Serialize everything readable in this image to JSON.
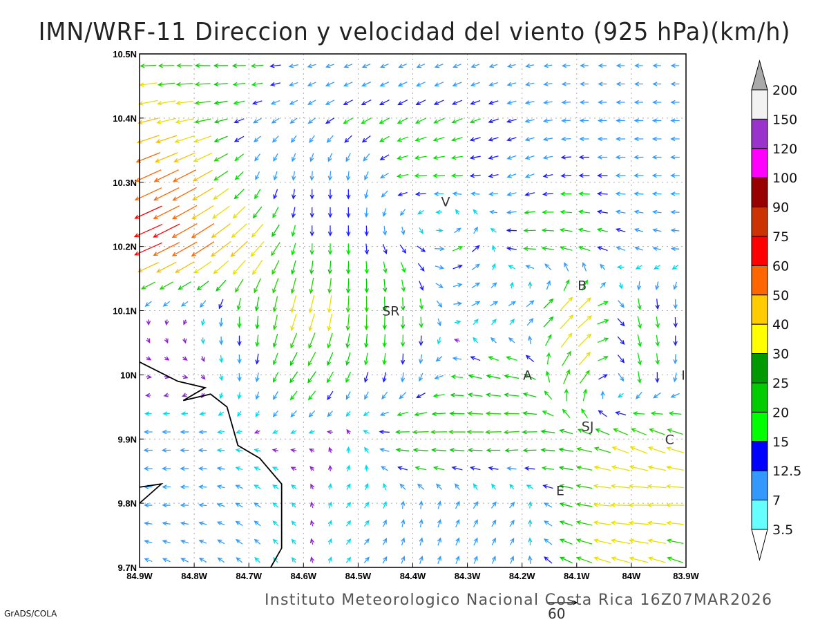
{
  "title": "IMN/WRF-11 Direccion y velocidad del viento (925 hPa)(km/h)",
  "footer": "Instituto Meteorologico Nacional Costa Rica 16Z07MAR2026",
  "credit": "GrADS/COLA",
  "reference_vector": {
    "value": "60",
    "speed": 60
  },
  "chart_data": {
    "type": "vector-field",
    "units": "km/h",
    "level": "925 hPa",
    "lon_range": [
      -84.9,
      -83.9
    ],
    "lat_range": [
      9.7,
      10.5
    ],
    "x_ticks": [
      "84.9W",
      "84.8W",
      "84.7W",
      "84.6W",
      "84.5W",
      "84.4W",
      "84.3W",
      "84.2W",
      "84.1W",
      "84W",
      "83.9W"
    ],
    "y_ticks": [
      "10.5N",
      "10.4N",
      "10.3N",
      "10.2N",
      "10.1N",
      "10N",
      "9.9N",
      "9.8N",
      "9.7N"
    ],
    "grid": true,
    "coarse_grid_note": "rows lat 10.5 to 9.7 step 0.1; cols lon 84.9W to 83.9W step 0.1; [u,v] km/h",
    "uv": [
      [
        [
          -25,
          0
        ],
        [
          -25,
          2
        ],
        [
          -22,
          0
        ],
        [
          -10,
          -2
        ],
        [
          -8,
          -3
        ],
        [
          -8,
          -3
        ],
        [
          -8,
          -3
        ],
        [
          -8,
          -2
        ],
        [
          -8,
          0
        ],
        [
          -8,
          0
        ],
        [
          -8,
          0
        ]
      ],
      [
        [
          -40,
          -10
        ],
        [
          -30,
          -5
        ],
        [
          -10,
          -5
        ],
        [
          -8,
          -6
        ],
        [
          -15,
          -8
        ],
        [
          -15,
          -8
        ],
        [
          -15,
          -6
        ],
        [
          -12,
          -3
        ],
        [
          -10,
          0
        ],
        [
          -10,
          0
        ],
        [
          -10,
          0
        ]
      ],
      [
        [
          -55,
          -25
        ],
        [
          -45,
          -25
        ],
        [
          -5,
          -10
        ],
        [
          0,
          -12
        ],
        [
          0,
          -12
        ],
        [
          -20,
          0
        ],
        [
          -15,
          0
        ],
        [
          -10,
          -5
        ],
        [
          -15,
          0
        ],
        [
          -12,
          0
        ],
        [
          -10,
          0
        ]
      ],
      [
        [
          -60,
          -25
        ],
        [
          -50,
          -30
        ],
        [
          -30,
          -30
        ],
        [
          0,
          -15
        ],
        [
          0,
          -15
        ],
        [
          10,
          -10
        ],
        [
          15,
          10
        ],
        [
          -20,
          0
        ],
        [
          -20,
          5
        ],
        [
          -10,
          5
        ],
        [
          -8,
          0
        ]
      ],
      [
        [
          0,
          -3
        ],
        [
          -2,
          -2
        ],
        [
          0,
          -20
        ],
        [
          -10,
          -35
        ],
        [
          0,
          -30
        ],
        [
          0,
          -20
        ],
        [
          10,
          5
        ],
        [
          10,
          5
        ],
        [
          30,
          30
        ],
        [
          5,
          -20
        ],
        [
          0,
          -12
        ]
      ],
      [
        [
          2,
          0
        ],
        [
          3,
          -1
        ],
        [
          0,
          -10
        ],
        [
          -15,
          -20
        ],
        [
          -5,
          -15
        ],
        [
          0,
          -12
        ],
        [
          -20,
          5
        ],
        [
          -25,
          5
        ],
        [
          20,
          30
        ],
        [
          5,
          -20
        ],
        [
          -3,
          -10
        ]
      ],
      [
        [
          -10,
          0
        ],
        [
          -10,
          0
        ],
        [
          -3,
          0
        ],
        [
          -3,
          0
        ],
        [
          0,
          5
        ],
        [
          -30,
          0
        ],
        [
          -30,
          0
        ],
        [
          -25,
          -3
        ],
        [
          -25,
          5
        ],
        [
          -30,
          15
        ],
        [
          -30,
          10
        ]
      ],
      [
        [
          -8,
          0
        ],
        [
          -8,
          0
        ],
        [
          -8,
          5
        ],
        [
          -2,
          3
        ],
        [
          5,
          5
        ],
        [
          0,
          8
        ],
        [
          5,
          8
        ],
        [
          5,
          5
        ],
        [
          -25,
          5
        ],
        [
          -40,
          0
        ],
        [
          -30,
          0
        ]
      ],
      [
        [
          -8,
          3
        ],
        [
          -8,
          5
        ],
        [
          -5,
          5
        ],
        [
          -2,
          3
        ],
        [
          5,
          5
        ],
        [
          3,
          8
        ],
        [
          3,
          8
        ],
        [
          3,
          8
        ],
        [
          -25,
          10
        ],
        [
          -35,
          10
        ],
        [
          -25,
          10
        ]
      ]
    ],
    "coastline": [
      [
        -84.9,
        10.02
      ],
      [
        -84.83,
        9.99
      ],
      [
        -84.78,
        9.98
      ],
      [
        -84.82,
        9.96
      ],
      [
        -84.77,
        9.97
      ],
      [
        -84.74,
        9.95
      ],
      [
        -84.72,
        9.89
      ],
      [
        -84.68,
        9.87
      ],
      [
        -84.64,
        9.83
      ],
      [
        -84.64,
        9.73
      ],
      [
        -84.66,
        9.7
      ]
    ],
    "coastline2": [
      [
        -84.9,
        9.825
      ],
      [
        -84.86,
        9.83
      ],
      [
        -84.9,
        9.8
      ]
    ],
    "places": [
      {
        "label": "SR",
        "lon": -84.44,
        "lat": 10.1
      },
      {
        "label": "V",
        "lon": -84.34,
        "lat": 10.27
      },
      {
        "label": "B",
        "lon": -84.09,
        "lat": 10.14
      },
      {
        "label": "A",
        "lon": -84.19,
        "lat": 10.0
      },
      {
        "label": "SJ",
        "lon": -84.08,
        "lat": 9.92
      },
      {
        "label": "C",
        "lon": -83.93,
        "lat": 9.9
      },
      {
        "label": "E",
        "lon": -84.13,
        "lat": 9.82
      },
      {
        "label": "I",
        "lon": -83.905,
        "lat": 10.0
      }
    ],
    "colorbar": {
      "labels": [
        "200",
        "150",
        "120",
        "100",
        "90",
        "75",
        "60",
        "50",
        "40",
        "30",
        "25",
        "20",
        "15",
        "12.5",
        "7",
        "3.5"
      ],
      "colors": [
        "#f2f2f2",
        "#9933cc",
        "#ff00ff",
        "#990000",
        "#cc3300",
        "#ff0000",
        "#ff6600",
        "#ffcc00",
        "#ffff00",
        "#009900",
        "#00cc00",
        "#00ff00",
        "#0000ff",
        "#3399ff",
        "#66ffff"
      ],
      "over_color": "#aaaaaa",
      "under_color": "#ffffff"
    }
  }
}
